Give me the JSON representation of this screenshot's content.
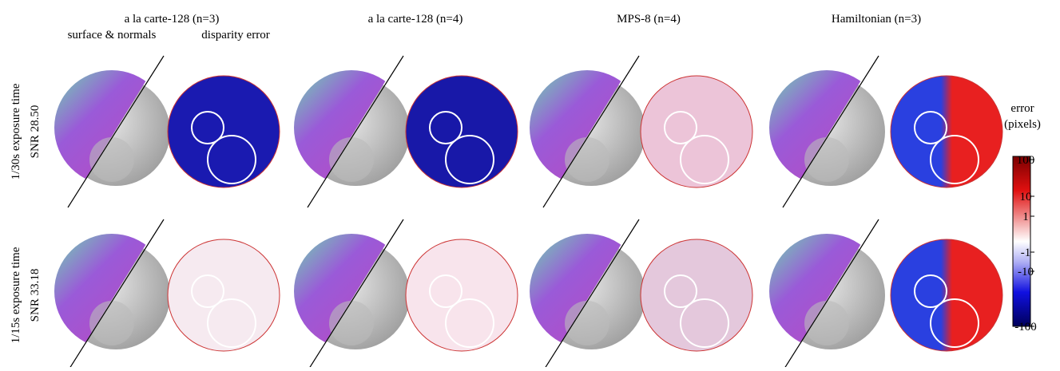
{
  "columns": [
    {
      "title": "a la carte-128 (n=3)",
      "subtitles": [
        "surface & normals",
        "disparity error"
      ]
    },
    {
      "title": "a la carte-128 (n=4)"
    },
    {
      "title": "MPS-8 (n=4)"
    },
    {
      "title": "Hamiltonian (n=3)"
    }
  ],
  "rows": [
    {
      "label": "1/30s exposure time",
      "snr": "SNR 28.50"
    },
    {
      "label": "1/15s exposure time",
      "snr": "SNR 33.18"
    }
  ],
  "colorbar": {
    "title": "error",
    "unit": "(pixels)",
    "ticks": [
      "100",
      "10",
      "1",
      "-1",
      "-10",
      "-100"
    ]
  }
}
